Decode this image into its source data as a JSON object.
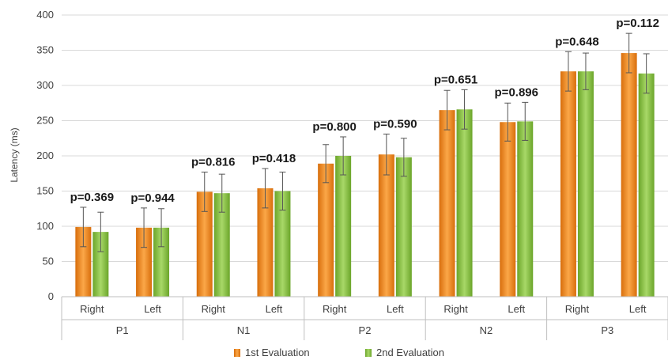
{
  "chart_data": {
    "type": "bar",
    "ylabel": "Latency (ms)",
    "ylim": [
      0,
      400
    ],
    "yticks": [
      0,
      50,
      100,
      150,
      200,
      250,
      300,
      350,
      400
    ],
    "grid": "horizontal",
    "legend_position": "bottom",
    "groups": [
      "P1",
      "N1",
      "P2",
      "N2",
      "P3"
    ],
    "categories": [
      "Right",
      "Left",
      "Right",
      "Left",
      "Right",
      "Left",
      "Right",
      "Left",
      "Right",
      "Left"
    ],
    "p_values": [
      "p=0.369",
      "p=0.944",
      "p=0.816",
      "p=0.418",
      "p=0.800",
      "p=0.590",
      "p=0.651",
      "p=0.896",
      "p=0.648",
      "p=0.112"
    ],
    "series": [
      {
        "name": "1st Evaluation",
        "color": "#f28a1e",
        "values": [
          99,
          98,
          149,
          154,
          189,
          202,
          265,
          248,
          320,
          346
        ],
        "error": [
          28,
          28,
          28,
          28,
          27,
          29,
          28,
          27,
          28,
          28
        ]
      },
      {
        "name": "2nd Evaluation",
        "color": "#8cc63e",
        "values": [
          92,
          98,
          147,
          150,
          200,
          198,
          266,
          249,
          320,
          317
        ],
        "error": [
          28,
          27,
          27,
          27,
          27,
          27,
          28,
          27,
          26,
          28
        ]
      }
    ]
  }
}
